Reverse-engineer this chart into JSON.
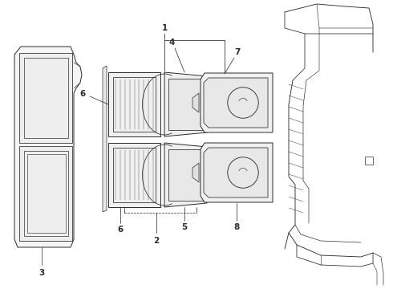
{
  "bg_color": "#ffffff",
  "line_color": "#2a2a2a",
  "lw": 0.7,
  "fig_width": 4.9,
  "fig_height": 3.6,
  "dpi": 100
}
